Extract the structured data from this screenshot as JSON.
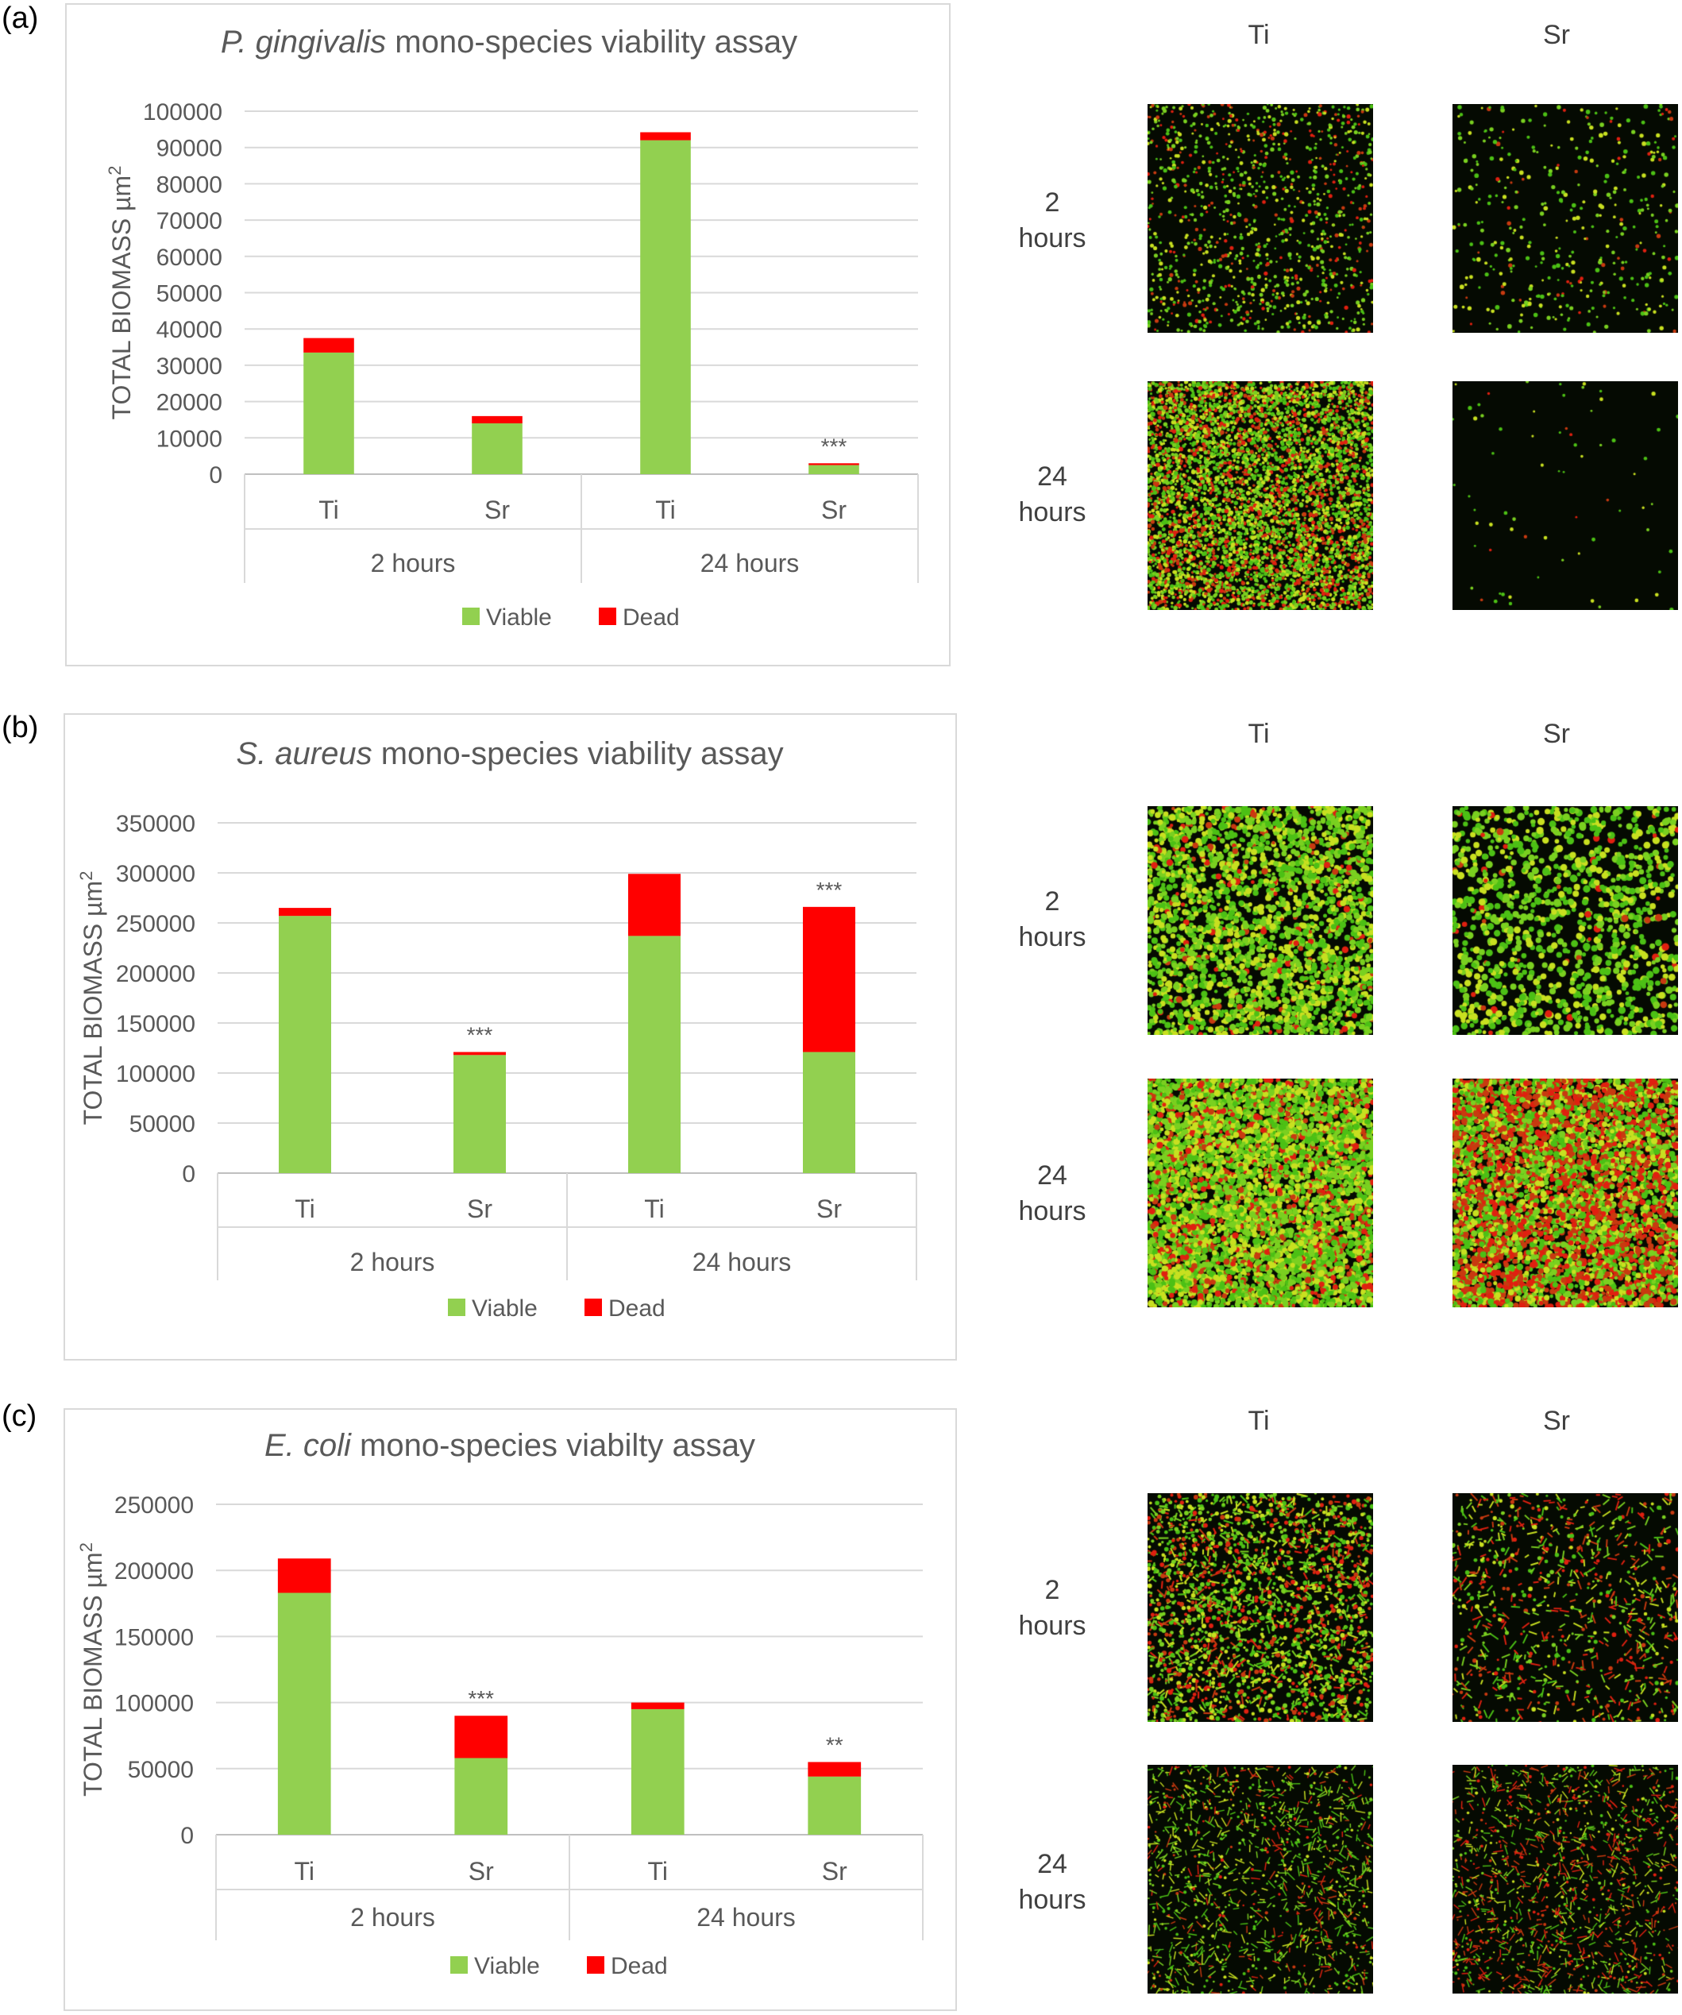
{
  "panels": [
    {
      "label": "(a)",
      "chart_data": {
        "type": "bar",
        "stacked": true,
        "title_italic": "P. gingivalis",
        "title_rest": " mono-species viability assay",
        "ylabel": "TOTAL BIOMASS µm",
        "ylabel_sup": "2",
        "ylim": [
          0,
          100000
        ],
        "yticks": [
          "0",
          "10000",
          "20000",
          "30000",
          "40000",
          "50000",
          "60000",
          "70000",
          "80000",
          "90000",
          "100000"
        ],
        "categories": [
          "Ti",
          "Sr",
          "Ti",
          "Sr"
        ],
        "groups": [
          "2 hours",
          "24 hours"
        ],
        "series": [
          {
            "name": "Viable",
            "color": "#92d050",
            "values": [
              33500,
              14000,
              92000,
              2500
            ]
          },
          {
            "name": "Dead",
            "color": "#ff0000",
            "values": [
              4000,
              2000,
              2200,
              500
            ]
          }
        ],
        "annotations": [
          "",
          "",
          "",
          "***"
        ],
        "legend": "bottom",
        "grid": true
      },
      "micro": {
        "col_heads": [
          "Ti",
          "Sr"
        ],
        "row_heads": [
          [
            "2",
            "hours"
          ],
          [
            "24",
            "hours"
          ]
        ]
      }
    },
    {
      "label": "(b)",
      "chart_data": {
        "type": "bar",
        "stacked": true,
        "title_italic": "S. aureus",
        "title_rest": " mono-species viability assay",
        "ylabel": "TOTAL BIOMASS µm",
        "ylabel_sup": "2",
        "ylim": [
          0,
          350000
        ],
        "yticks": [
          "0",
          "50000",
          "100000",
          "150000",
          "200000",
          "250000",
          "300000",
          "350000"
        ],
        "categories": [
          "Ti",
          "Sr",
          "Ti",
          "Sr"
        ],
        "groups": [
          "2 hours",
          "24 hours"
        ],
        "series": [
          {
            "name": "Viable",
            "color": "#92d050",
            "values": [
              257000,
              118000,
              237000,
              121000
            ]
          },
          {
            "name": "Dead",
            "color": "#ff0000",
            "values": [
              8000,
              3000,
              62000,
              145000
            ]
          }
        ],
        "annotations": [
          "",
          "***",
          "",
          "***"
        ],
        "legend": "bottom",
        "grid": true
      },
      "micro": {
        "col_heads": [
          "Ti",
          "Sr"
        ],
        "row_heads": [
          [
            "2",
            "hours"
          ],
          [
            "24",
            "hours"
          ]
        ]
      }
    },
    {
      "label": "(c)",
      "chart_data": {
        "type": "bar",
        "stacked": true,
        "title_italic": "E. coli",
        "title_rest": " mono-species viabilty assay",
        "ylabel": "TOTAL BIOMASS µm",
        "ylabel_sup": "2",
        "ylim": [
          0,
          250000
        ],
        "yticks": [
          "0",
          "50000",
          "100000",
          "150000",
          "200000",
          "250000"
        ],
        "categories": [
          "Ti",
          "Sr",
          "Ti",
          "Sr"
        ],
        "groups": [
          "2 hours",
          "24 hours"
        ],
        "series": [
          {
            "name": "Viable",
            "color": "#92d050",
            "values": [
              183000,
              58000,
              95000,
              44000
            ]
          },
          {
            "name": "Dead",
            "color": "#ff0000",
            "values": [
              26000,
              32000,
              5000,
              11000
            ]
          }
        ],
        "annotations": [
          "",
          "***",
          "",
          "**"
        ],
        "legend": "bottom",
        "grid": true
      },
      "micro": {
        "col_heads": [
          "Ti",
          "Sr"
        ],
        "row_heads": [
          [
            "2",
            "hours"
          ],
          [
            "24",
            "hours"
          ]
        ]
      }
    }
  ]
}
